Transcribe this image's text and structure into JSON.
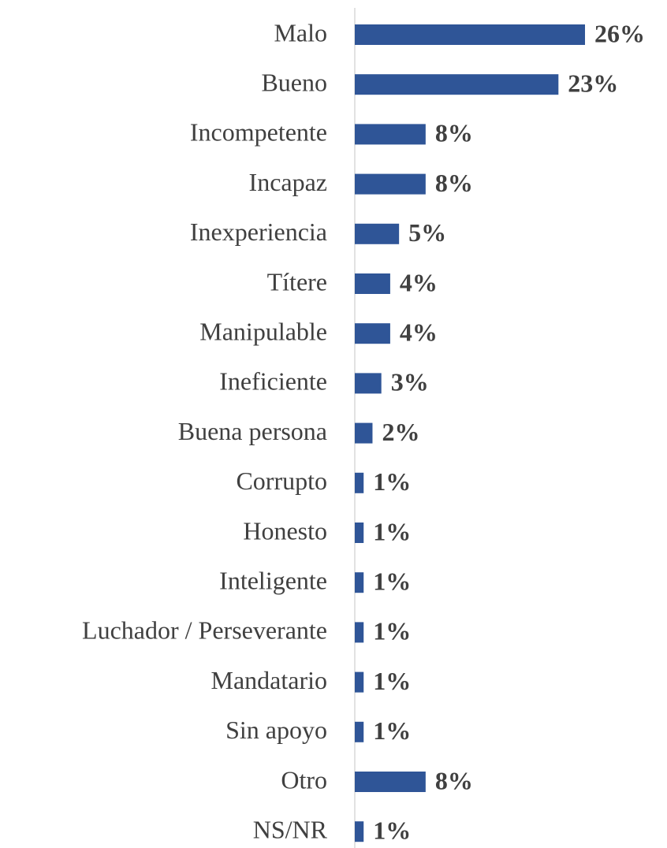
{
  "chart_data": {
    "type": "bar",
    "orientation": "horizontal",
    "categories": [
      "Malo",
      "Bueno",
      "Incompetente",
      "Incapaz",
      "Inexperiencia",
      "Títere",
      "Manipulable",
      "Ineficiente",
      "Buena persona",
      "Corrupto",
      "Honesto",
      "Inteligente",
      "Luchador / Perseverante",
      "Mandatario",
      "Sin apoyo",
      "Otro",
      "NS/NR"
    ],
    "values": [
      26,
      23,
      8,
      8,
      5,
      4,
      4,
      3,
      2,
      1,
      1,
      1,
      1,
      1,
      1,
      8,
      1
    ],
    "value_labels": [
      "26%",
      "23%",
      "8%",
      "8%",
      "5%",
      "4%",
      "4%",
      "3%",
      "2%",
      "1%",
      "1%",
      "1%",
      "1%",
      "1%",
      "1%",
      "8%",
      "1%"
    ],
    "color": "#2f5597"
  }
}
